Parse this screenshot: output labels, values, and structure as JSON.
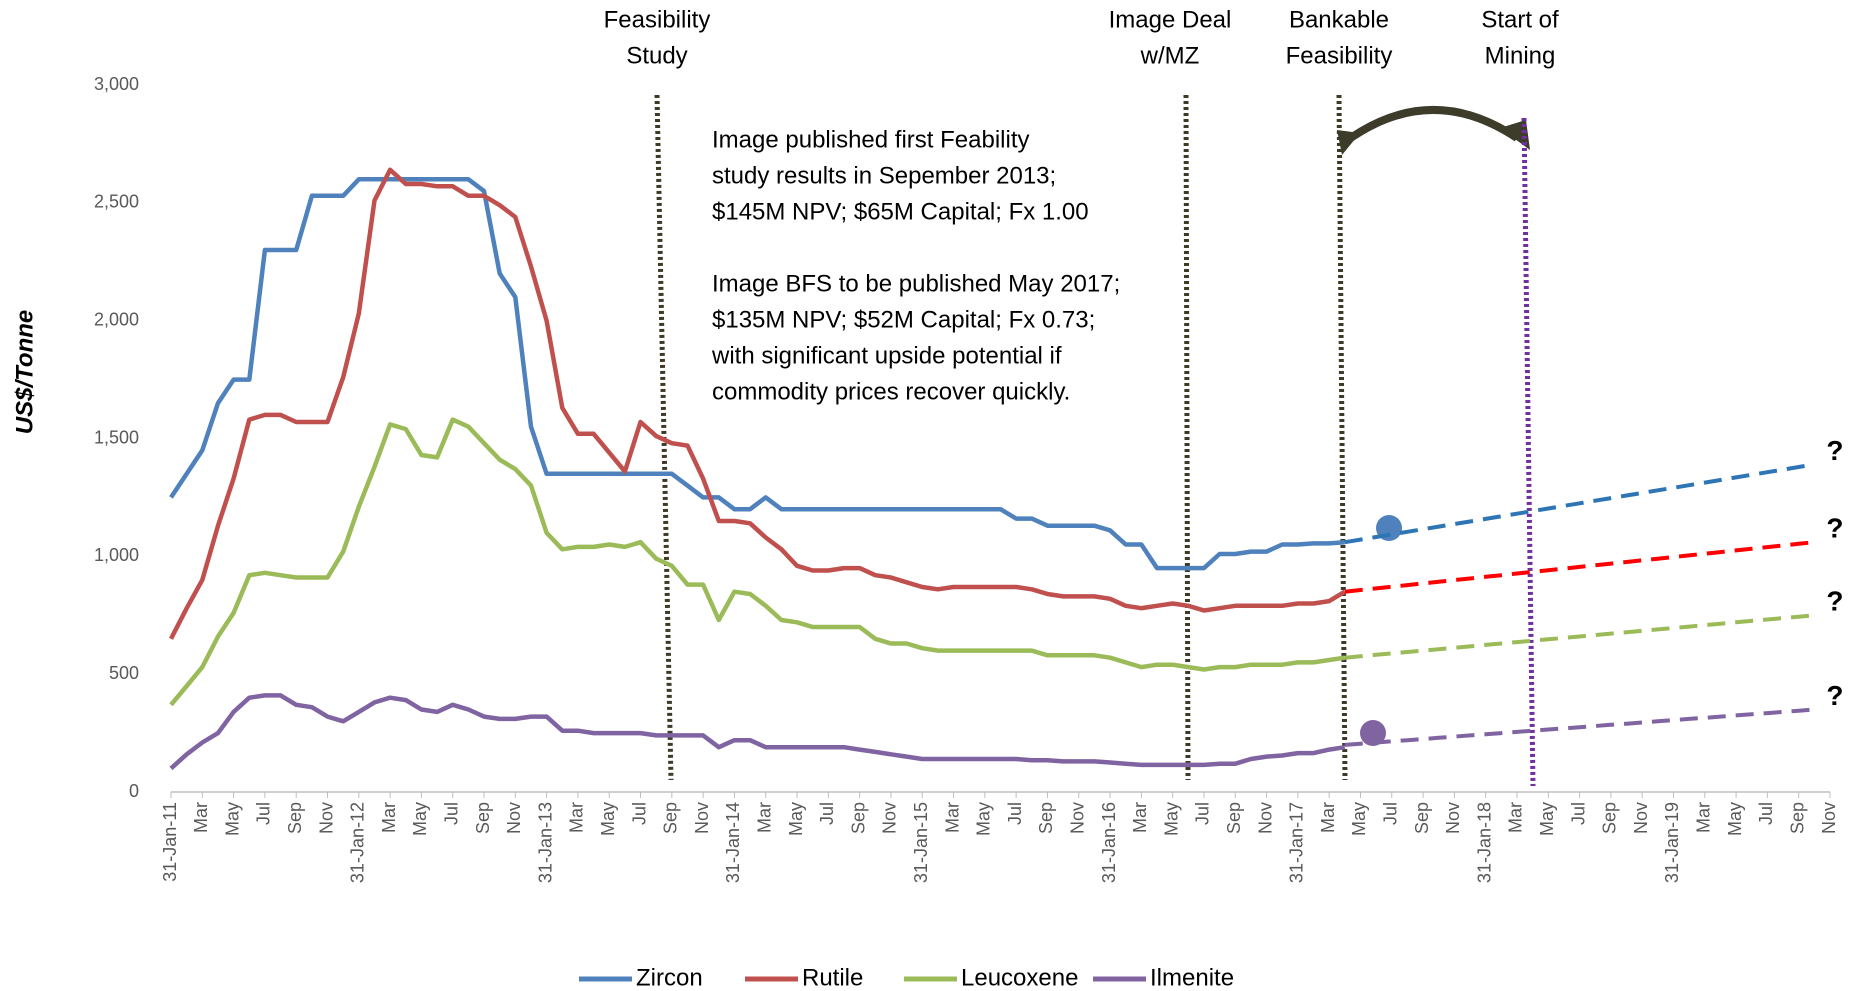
{
  "chart_data": {
    "type": "line",
    "y_label": "US$/Tonne",
    "ylim": [
      0,
      3000
    ],
    "yticks": [
      0,
      500,
      {
        "value": 1000,
        "label": "1,000"
      },
      {
        "value": 1500,
        "label": "1,500"
      },
      {
        "value": 2000,
        "label": "2,000"
      },
      {
        "value": 2500,
        "label": "2,500"
      },
      {
        "value": 3000,
        "label": "3,000"
      }
    ],
    "categories": [
      "31-Jan-11",
      null,
      "Mar",
      null,
      "May",
      null,
      "Jul",
      null,
      "Sep",
      null,
      "Nov",
      null,
      "31-Jan-12",
      null,
      "Mar",
      null,
      "May",
      null,
      "Jul",
      null,
      "Sep",
      null,
      "Nov",
      null,
      "31-Jan-13",
      null,
      "Mar",
      null,
      "May",
      null,
      "Jul",
      null,
      "Sep",
      null,
      "Nov",
      null,
      "31-Jan-14",
      null,
      "Mar",
      null,
      "May",
      null,
      "Jul",
      null,
      "Sep",
      null,
      "Nov",
      null,
      "31-Jan-15",
      null,
      "Mar",
      null,
      "May",
      null,
      "Jul",
      null,
      "Sep",
      null,
      "Nov",
      null,
      "31-Jan-16",
      null,
      "Mar",
      null,
      "May",
      null,
      "Jul",
      null,
      "Sep",
      null,
      "Nov",
      null,
      "31-Jan-17",
      null,
      "Mar",
      null,
      "May",
      null,
      "Jul",
      null,
      "Sep",
      null,
      "Nov",
      null,
      "31-Jan-18",
      null,
      "Mar",
      null,
      "May",
      null,
      "Jul",
      null,
      "Sep",
      null,
      "Nov",
      null,
      "31-Jan-19",
      null,
      "Mar",
      null,
      "May",
      null,
      "Jul",
      null,
      "Sep",
      null,
      "Nov"
    ],
    "series": [
      {
        "name": "Zircon",
        "color": "#4f81bd",
        "forecast_color": "#2e75b6",
        "end_label": "?",
        "values": [
          1250,
          1350,
          1450,
          1650,
          1750,
          1750,
          2300,
          2300,
          2300,
          2530,
          2530,
          2530,
          2600,
          2600,
          2600,
          2600,
          2600,
          2600,
          2600,
          2600,
          2550,
          2200,
          2100,
          1550,
          1350,
          1350,
          1350,
          1350,
          1350,
          1350,
          1350,
          1350,
          1350,
          1300,
          1250,
          1250,
          1200,
          1200,
          1250,
          1200,
          1200,
          1200,
          1200,
          1200,
          1200,
          1200,
          1200,
          1200,
          1200,
          1200,
          1200,
          1200,
          1200,
          1200,
          1160,
          1160,
          1130,
          1130,
          1130,
          1130,
          1110,
          1050,
          1050,
          950,
          950,
          950,
          950,
          1010,
          1010,
          1020,
          1020,
          1050,
          1050,
          1055,
          1055,
          1060,
          null,
          null,
          null,
          null,
          null,
          null,
          null,
          null,
          null,
          null,
          null,
          null,
          null,
          null,
          null,
          null,
          null,
          null,
          null,
          null,
          null,
          null,
          null,
          null,
          null,
          null,
          null,
          null,
          null,
          null,
          null
        ],
        "forecast": [
          null,
          null,
          null,
          null,
          null,
          null,
          null,
          null,
          null,
          null,
          null,
          null,
          null,
          null,
          null,
          null,
          null,
          null,
          null,
          null,
          null,
          null,
          null,
          null,
          null,
          null,
          null,
          null,
          null,
          null,
          null,
          null,
          null,
          null,
          null,
          null,
          null,
          null,
          null,
          null,
          null,
          null,
          null,
          null,
          null,
          null,
          null,
          null,
          null,
          null,
          null,
          null,
          null,
          null,
          null,
          null,
          null,
          null,
          null,
          null,
          null,
          null,
          null,
          null,
          null,
          null,
          null,
          null,
          null,
          null,
          null,
          null,
          null,
          null,
          null,
          1060,
          1071,
          1082,
          1093,
          1104,
          1115,
          1126,
          1137,
          1148,
          1159,
          1170,
          1181,
          1192,
          1203,
          1214,
          1225,
          1236,
          1247,
          1258,
          1269,
          1280,
          1291,
          1302,
          1313,
          1324,
          1335,
          1346,
          1357,
          1368,
          1379,
          1390,
          null
        ]
      },
      {
        "name": "Rutile",
        "color": "#c0504d",
        "forecast_color": "#ff0000",
        "end_label": "?",
        "values": [
          650,
          780,
          900,
          1130,
          1330,
          1580,
          1600,
          1600,
          1570,
          1570,
          1570,
          1760,
          2030,
          2510,
          2640,
          2580,
          2580,
          2570,
          2570,
          2530,
          2530,
          2490,
          2440,
          2230,
          2000,
          1630,
          1520,
          1520,
          1440,
          1360,
          1570,
          1510,
          1480,
          1470,
          1330,
          1150,
          1150,
          1140,
          1080,
          1030,
          960,
          940,
          940,
          950,
          950,
          920,
          910,
          890,
          870,
          860,
          870,
          870,
          870,
          870,
          870,
          860,
          840,
          830,
          830,
          830,
          820,
          790,
          780,
          790,
          800,
          790,
          770,
          780,
          790,
          790,
          790,
          790,
          800,
          800,
          810,
          850,
          null,
          null,
          null,
          null,
          null,
          null,
          null,
          null,
          null,
          null,
          null,
          null,
          null,
          null,
          null,
          null,
          null,
          null,
          null,
          null,
          null,
          null,
          null,
          null,
          null,
          null,
          null,
          null,
          null,
          null,
          null
        ],
        "forecast": [
          null,
          null,
          null,
          null,
          null,
          null,
          null,
          null,
          null,
          null,
          null,
          null,
          null,
          null,
          null,
          null,
          null,
          null,
          null,
          null,
          null,
          null,
          null,
          null,
          null,
          null,
          null,
          null,
          null,
          null,
          null,
          null,
          null,
          null,
          null,
          null,
          null,
          null,
          null,
          null,
          null,
          null,
          null,
          null,
          null,
          null,
          null,
          null,
          null,
          null,
          null,
          null,
          null,
          null,
          null,
          null,
          null,
          null,
          null,
          null,
          null,
          null,
          null,
          null,
          null,
          null,
          null,
          null,
          null,
          null,
          null,
          null,
          null,
          null,
          null,
          850,
          857,
          864,
          871,
          878,
          885,
          892,
          899,
          906,
          913,
          920,
          927,
          934,
          941,
          948,
          955,
          962,
          969,
          976,
          983,
          990,
          997,
          1004,
          1011,
          1018,
          1025,
          1032,
          1039,
          1046,
          1053,
          1060,
          null
        ]
      },
      {
        "name": "Leucoxene",
        "color": "#9bbb59",
        "forecast_color": "#9bbb59",
        "end_label": "?",
        "values": [
          370,
          450,
          530,
          660,
          760,
          920,
          930,
          920,
          910,
          910,
          910,
          1020,
          1210,
          1380,
          1560,
          1540,
          1430,
          1420,
          1580,
          1550,
          1480,
          1410,
          1370,
          1300,
          1100,
          1030,
          1040,
          1040,
          1050,
          1040,
          1060,
          990,
          960,
          880,
          880,
          730,
          850,
          840,
          790,
          730,
          720,
          700,
          700,
          700,
          700,
          650,
          630,
          630,
          610,
          600,
          600,
          600,
          600,
          600,
          600,
          600,
          580,
          580,
          580,
          580,
          570,
          550,
          530,
          540,
          540,
          530,
          520,
          530,
          530,
          540,
          540,
          540,
          550,
          550,
          560,
          570,
          null,
          null,
          null,
          null,
          null,
          null,
          null,
          null,
          null,
          null,
          null,
          null,
          null,
          null,
          null,
          null,
          null,
          null,
          null,
          null,
          null,
          null,
          null,
          null,
          null,
          null,
          null,
          null,
          null,
          null,
          null
        ],
        "forecast": [
          null,
          null,
          null,
          null,
          null,
          null,
          null,
          null,
          null,
          null,
          null,
          null,
          null,
          null,
          null,
          null,
          null,
          null,
          null,
          null,
          null,
          null,
          null,
          null,
          null,
          null,
          null,
          null,
          null,
          null,
          null,
          null,
          null,
          null,
          null,
          null,
          null,
          null,
          null,
          null,
          null,
          null,
          null,
          null,
          null,
          null,
          null,
          null,
          null,
          null,
          null,
          null,
          null,
          null,
          null,
          null,
          null,
          null,
          null,
          null,
          null,
          null,
          null,
          null,
          null,
          null,
          null,
          null,
          null,
          null,
          null,
          null,
          null,
          null,
          null,
          570,
          576,
          582,
          588,
          594,
          600,
          606,
          612,
          618,
          624,
          630,
          636,
          642,
          648,
          654,
          660,
          666,
          672,
          678,
          684,
          690,
          696,
          702,
          708,
          714,
          720,
          726,
          732,
          738,
          744,
          750,
          null
        ]
      },
      {
        "name": "Ilmenite",
        "color": "#8064a2",
        "forecast_color": "#8064a2",
        "end_label": "?",
        "values": [
          100,
          160,
          210,
          250,
          340,
          400,
          410,
          410,
          370,
          360,
          320,
          300,
          340,
          380,
          400,
          390,
          350,
          340,
          370,
          350,
          320,
          310,
          310,
          320,
          320,
          260,
          260,
          250,
          250,
          250,
          250,
          240,
          240,
          240,
          240,
          190,
          220,
          220,
          190,
          190,
          190,
          190,
          190,
          190,
          180,
          170,
          160,
          150,
          140,
          140,
          140,
          140,
          140,
          140,
          140,
          135,
          135,
          130,
          130,
          130,
          125,
          120,
          115,
          115,
          115,
          115,
          115,
          120,
          120,
          140,
          150,
          155,
          165,
          165,
          180,
          190,
          null,
          null,
          null,
          null,
          null,
          null,
          null,
          null,
          null,
          null,
          null,
          null,
          null,
          null,
          null,
          null,
          null,
          null,
          null,
          null,
          null,
          null,
          null,
          null,
          null,
          null,
          null,
          null,
          null,
          null,
          null
        ],
        "forecast": [
          null,
          null,
          null,
          null,
          null,
          null,
          null,
          null,
          null,
          null,
          null,
          null,
          null,
          null,
          null,
          null,
          null,
          null,
          null,
          null,
          null,
          null,
          null,
          null,
          null,
          null,
          null,
          null,
          null,
          null,
          null,
          null,
          null,
          null,
          null,
          null,
          null,
          null,
          null,
          null,
          null,
          null,
          null,
          null,
          null,
          null,
          null,
          null,
          null,
          null,
          null,
          null,
          null,
          null,
          null,
          null,
          null,
          null,
          null,
          null,
          null,
          null,
          null,
          null,
          null,
          null,
          null,
          null,
          null,
          null,
          null,
          null,
          null,
          null,
          null,
          200,
          205,
          210,
          215,
          220,
          225,
          230,
          235,
          240,
          245,
          250,
          255,
          260,
          265,
          270,
          275,
          280,
          285,
          290,
          295,
          300,
          305,
          310,
          315,
          320,
          325,
          330,
          335,
          340,
          345,
          350,
          null
        ]
      }
    ],
    "events": [
      {
        "label_lines": [
          "Feasibility",
          "Study"
        ],
        "color": "#3f3a26"
      },
      {
        "label_lines": [
          "Image Deal",
          "w/MZ"
        ],
        "color": "#3f3a26"
      },
      {
        "label_lines": [
          "Bankable",
          "Feasibility"
        ],
        "color": "#3f3a26"
      },
      {
        "label_lines": [
          "Start of",
          "Mining"
        ],
        "color": "#7030a0"
      }
    ],
    "annotation_lines": [
      "Image published first Feability",
      "study results in Sepember 2013;",
      "$145M NPV; $65M Capital; Fx 1.00",
      "Image BFS to be published May 2017;",
      "$135M NPV; $52M  Capital; Fx 0.73;",
      "with significant upside potential if",
      "commodity prices recover quickly."
    ]
  }
}
